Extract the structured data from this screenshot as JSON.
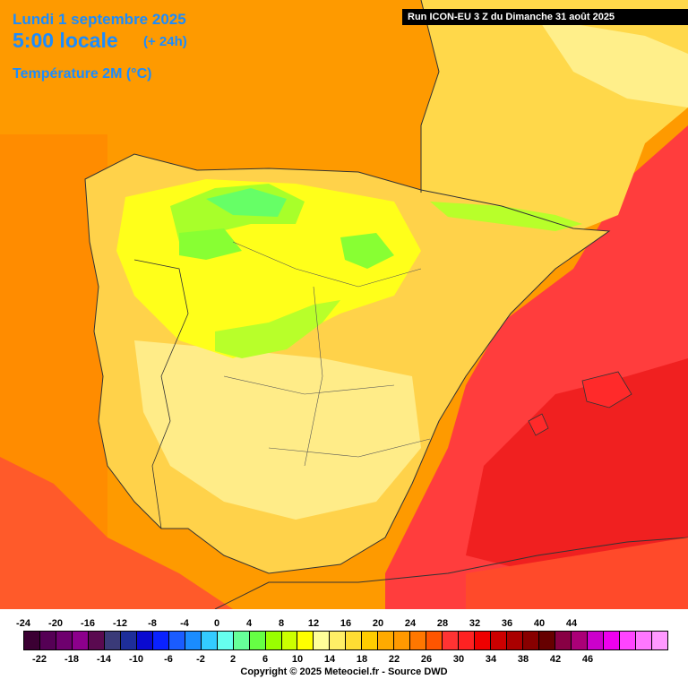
{
  "header": {
    "date": "Lundi 1 septembre 2025",
    "time": "5:00 locale",
    "offset": "(+ 24h)",
    "variable": "Température 2M (°C)"
  },
  "run_banner": "Run ICON-EU 3 Z du Dimanche 31 août 2025",
  "colors": {
    "sea": "#fe9a00",
    "hot": "#ff3d3d",
    "very_hot": "#f01818",
    "mild": "#ffd24a",
    "pale": "#ffe680",
    "cool": "#ffff00",
    "cold": "#b8ff2a",
    "coldest": "#66ff66",
    "border": "#333333"
  },
  "legend": {
    "top_labels": [
      "-24",
      "-20",
      "-16",
      "-12",
      "-8",
      "-4",
      "0",
      "4",
      "8",
      "12",
      "16",
      "20",
      "24",
      "28",
      "32",
      "36",
      "40",
      "44"
    ],
    "bottom_labels": [
      "-22",
      "-18",
      "-14",
      "-10",
      "-6",
      "-2",
      "2",
      "6",
      "10",
      "14",
      "18",
      "22",
      "26",
      "30",
      "34",
      "38",
      "42",
      "46"
    ],
    "swatches": [
      "#3b0033",
      "#550055",
      "#6e006e",
      "#8c008c",
      "#5a0a50",
      "#3a3a78",
      "#1e2e9a",
      "#0a0ad0",
      "#0a22ff",
      "#1a5cff",
      "#1a8cff",
      "#33ccff",
      "#66ffee",
      "#66ff99",
      "#66ff44",
      "#99ff00",
      "#ccff00",
      "#ffff00",
      "#ffff99",
      "#ffee66",
      "#ffdd33",
      "#ffcc00",
      "#ffaa00",
      "#ff9900",
      "#ff7700",
      "#ff5500",
      "#ff3333",
      "#ff2222",
      "#ee0000",
      "#cc0000",
      "#aa0000",
      "#880000",
      "#660000",
      "#880044",
      "#aa0077",
      "#cc00cc",
      "#ee00ee",
      "#ff44ff",
      "#ff77ff",
      "#ff99ff"
    ]
  },
  "copyright": "Copyright © 2025 Meteociel.fr - Source DWD"
}
